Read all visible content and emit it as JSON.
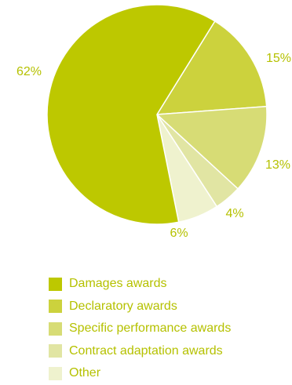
{
  "chart_data": {
    "type": "pie",
    "title": "",
    "categories": [
      "Damages awards",
      "Declaratory awards",
      "Specific performance awards",
      "Contract adaptation awards",
      "Other"
    ],
    "values": [
      62,
      15,
      13,
      4,
      6
    ],
    "value_labels": [
      "62%",
      "15%",
      "13%",
      "4%",
      "6%"
    ],
    "slice_order": [
      1,
      2,
      3,
      4,
      0
    ],
    "start_direction": "top-right",
    "legend_position": "bottom",
    "colors": [
      "#bdc800",
      "#ccd23d",
      "#d7dc75",
      "#e1e5a3",
      "#eff2ce"
    ],
    "label_color": "#b5c100",
    "slice_border_color": "#ffffff"
  }
}
